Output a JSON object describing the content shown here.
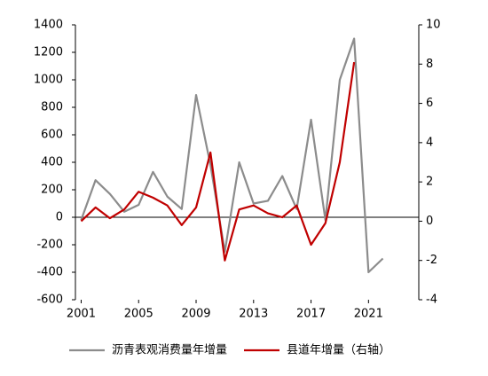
{
  "chart_data": {
    "type": "line",
    "x": [
      2001,
      2002,
      2003,
      2004,
      2005,
      2006,
      2007,
      2008,
      2009,
      2010,
      2011,
      2012,
      2013,
      2014,
      2015,
      2016,
      2017,
      2018,
      2019,
      2020,
      2021,
      2022
    ],
    "series": [
      {
        "name": "沥青表观消费量年增量",
        "color": "#8c8c8c",
        "values": [
          -20,
          270,
          170,
          40,
          90,
          330,
          150,
          60,
          890,
          380,
          -250,
          400,
          100,
          120,
          300,
          60,
          710,
          -20,
          1000,
          1300,
          -400,
          -300
        ]
      },
      {
        "name": "县道年增量（右轴）",
        "color": "#c00000",
        "axis": "y2",
        "values": [
          0,
          0.7,
          0.15,
          0.6,
          1.5,
          1.2,
          0.8,
          -0.2,
          0.7,
          3.5,
          -2,
          0.6,
          0.8,
          0.4,
          0.2,
          0.8,
          -1.2,
          -0.1,
          3,
          8.1,
          null,
          null
        ]
      }
    ],
    "xlim": [
      2000.6,
      2024.5
    ],
    "xticks": [
      2001,
      2005,
      2009,
      2013,
      2017,
      2021
    ],
    "ylim": [
      -600,
      1400
    ],
    "yticks": [
      -600,
      -400,
      -200,
      0,
      200,
      400,
      600,
      800,
      1000,
      1200,
      1400
    ],
    "y2lim": [
      -4,
      10
    ],
    "y2ticks": [
      -4,
      -2,
      0,
      2,
      4,
      6,
      8,
      10
    ],
    "legend": "bottom"
  }
}
